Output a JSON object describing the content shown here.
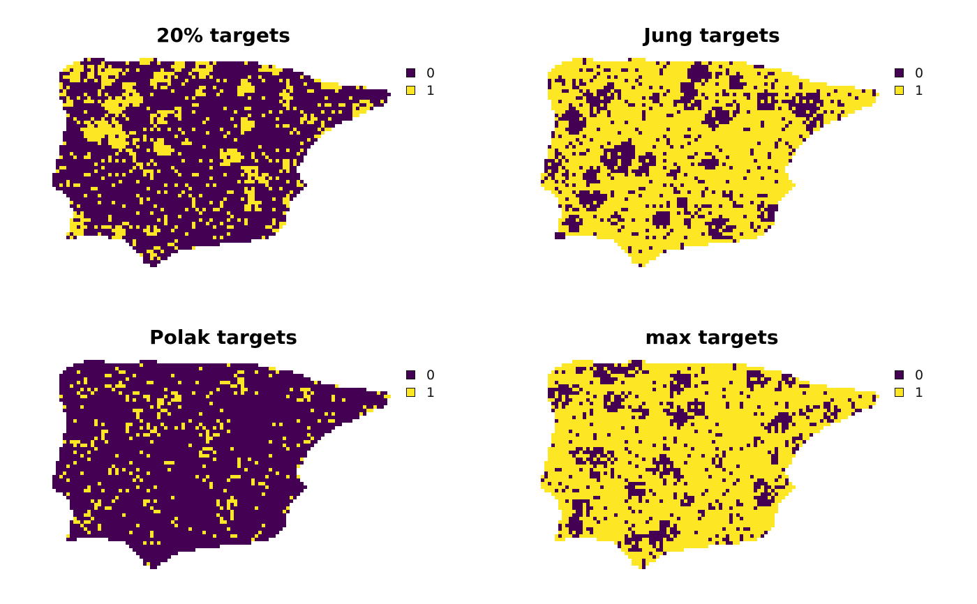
{
  "colors": {
    "zero": "#440154",
    "one": "#FDE725"
  },
  "legend": {
    "items": [
      {
        "label": "0",
        "color": "#440154"
      },
      {
        "label": "1",
        "color": "#FDE725"
      }
    ]
  },
  "panels": [
    {
      "title": "20% targets",
      "selected_fraction": 0.2
    },
    {
      "title": "Jung targets",
      "selected_fraction": 0.8
    },
    {
      "title": "Polak targets",
      "selected_fraction": 0.08
    },
    {
      "title": "max targets",
      "selected_fraction": 0.82
    }
  ]
}
